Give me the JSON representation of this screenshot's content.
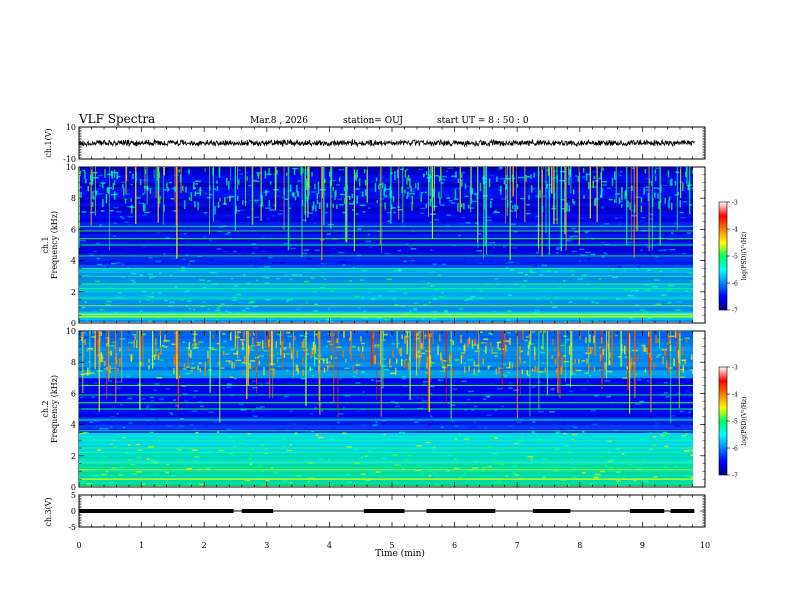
{
  "header": {
    "title": "VLF Spectra",
    "date": "Mar.8 , 2026",
    "station": "station= OUJ",
    "start": "start UT = 8 : 50 : 0"
  },
  "chart_data": [
    {
      "type": "line",
      "name": "ch1-waveform",
      "ylabel": "ch.1(V)",
      "ylim": [
        -10,
        10
      ],
      "yticks": [
        "10",
        "-10"
      ],
      "x_range_min": [
        0,
        9.83
      ],
      "mean_value": 0,
      "amplitude": 2
    },
    {
      "type": "heatmap",
      "name": "ch1-spectrogram",
      "ylabel": "ch.1 Frequency (kHz)",
      "ylim": [
        0,
        10
      ],
      "yticks": [
        "0",
        "2",
        "4",
        "6",
        "8",
        "10"
      ],
      "colorbar": {
        "label": "log(PSD)(V²/Hz)",
        "ticks": [
          "-3",
          "-4",
          "-5",
          "-6",
          "-7"
        ],
        "range": [
          -7,
          -3
        ]
      },
      "tone_lines_khz": [
        0.4,
        0.55,
        1.1,
        1.6,
        2.2,
        2.5,
        3.0,
        3.5,
        4.3,
        5.0,
        5.4,
        5.9,
        6.2
      ]
    },
    {
      "type": "heatmap",
      "name": "ch2-spectrogram",
      "ylabel": "ch.2 Frequency (kHz)",
      "ylim": [
        0,
        10
      ],
      "yticks": [
        "0",
        "2",
        "4",
        "6",
        "8",
        "10"
      ],
      "colorbar": {
        "label": "log(PSD)(V²/Hz)",
        "ticks": [
          "-3",
          "-4",
          "-5",
          "-6",
          "-7"
        ],
        "range": [
          -7,
          -3
        ]
      },
      "tone_lines_khz": [
        0.5,
        1.1,
        1.6,
        2.2,
        2.5,
        3.0,
        3.6,
        4.3,
        5.0,
        5.4,
        5.9,
        6.5
      ]
    },
    {
      "type": "line",
      "name": "ch3-status",
      "ylabel": "ch.3(V)",
      "ylim": [
        -5,
        5
      ],
      "yticks": [
        "5",
        "0",
        "-5"
      ],
      "baseline_value": 0,
      "on_segments_min": [
        [
          0,
          2.47
        ],
        [
          2.6,
          3.1
        ],
        [
          4.55,
          5.2
        ],
        [
          5.55,
          6.65
        ],
        [
          7.25,
          7.85
        ],
        [
          8.8,
          9.35
        ],
        [
          9.45,
          9.83
        ]
      ]
    }
  ],
  "xaxis": {
    "label": "Time (min)",
    "ticks": [
      "0",
      "1",
      "2",
      "3",
      "4",
      "5",
      "6",
      "7",
      "8",
      "9",
      "10"
    ],
    "range": [
      0,
      10
    ]
  }
}
